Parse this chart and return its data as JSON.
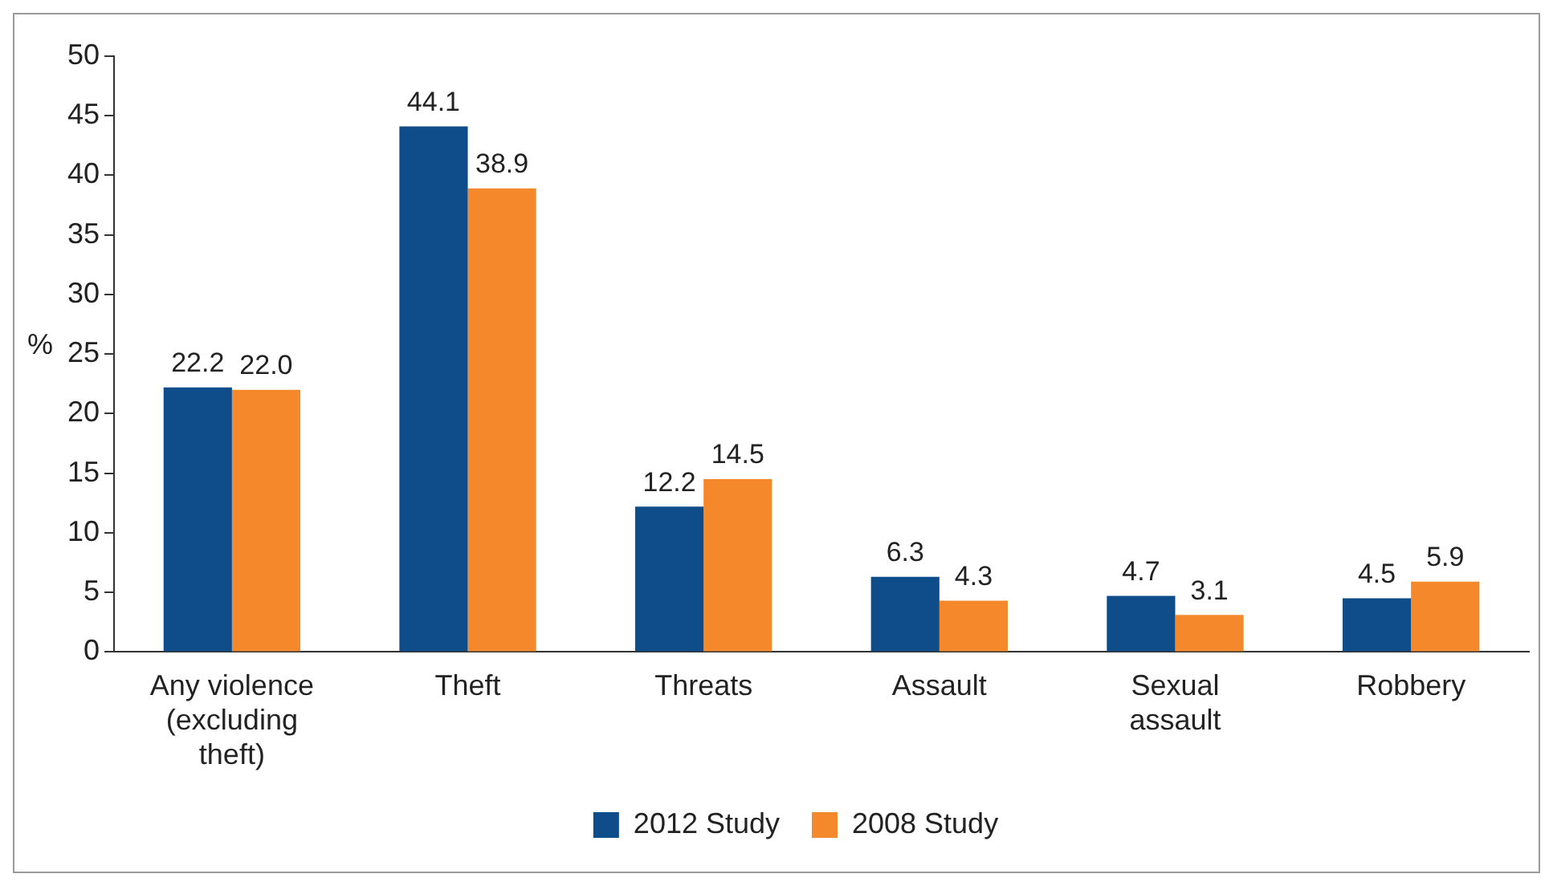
{
  "chart_data": {
    "type": "bar",
    "ylabel": "%",
    "categories": [
      "Any violence (excluding theft)",
      "Theft",
      "Threats",
      "Assault",
      "Sexual assault",
      "Robbery"
    ],
    "series": [
      {
        "name": "2012 Study",
        "color": "#0f4c8a",
        "values": [
          22.2,
          44.1,
          12.2,
          6.3,
          4.7,
          4.5
        ],
        "value_labels": [
          "22.2",
          "44.1",
          "12.2",
          "6.3",
          "4.7",
          "4.5"
        ]
      },
      {
        "name": "2008 Study",
        "color": "#f5882a",
        "values": [
          22.0,
          38.9,
          14.5,
          4.3,
          3.1,
          5.9
        ],
        "value_labels": [
          "22.0",
          "38.9",
          "14.5",
          "4.3",
          "3.1",
          "5.9"
        ]
      }
    ],
    "ylim": [
      0,
      50
    ],
    "yticks": [
      0,
      5,
      10,
      15,
      20,
      25,
      30,
      35,
      40,
      45,
      50
    ],
    "grid": false,
    "legend": "bottom"
  }
}
